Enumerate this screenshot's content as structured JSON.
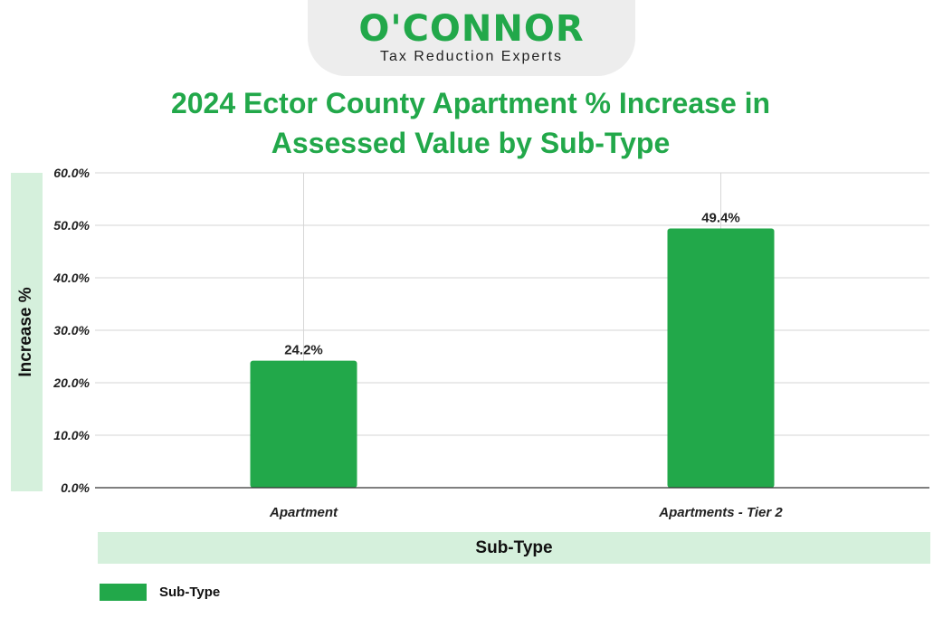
{
  "logo": {
    "name": "O'CONNOR",
    "tagline": "Tax Reduction Experts"
  },
  "colors": {
    "bar": "#22a84a",
    "title": "#22a84a",
    "band": "#d5f0dc",
    "grid": "#d6d6d6"
  },
  "chart_data": {
    "type": "bar",
    "title_line1": "2024 Ector County Apartment % Increase in",
    "title_line2": "Assessed Value by Sub-Type",
    "xlabel": "Sub-Type",
    "ylabel": "Increase %",
    "categories": [
      "Apartment",
      "Apartments - Tier 2"
    ],
    "series": [
      {
        "name": "Sub-Type",
        "values": [
          24.2,
          49.4
        ]
      }
    ],
    "data_labels": [
      "24.2%",
      "49.4%"
    ],
    "ylim": [
      0,
      60
    ],
    "yticks": [
      "0.0%",
      "10.0%",
      "20.0%",
      "30.0%",
      "40.0%",
      "50.0%",
      "60.0%"
    ],
    "grid": true,
    "legend_position": "bottom-left"
  }
}
